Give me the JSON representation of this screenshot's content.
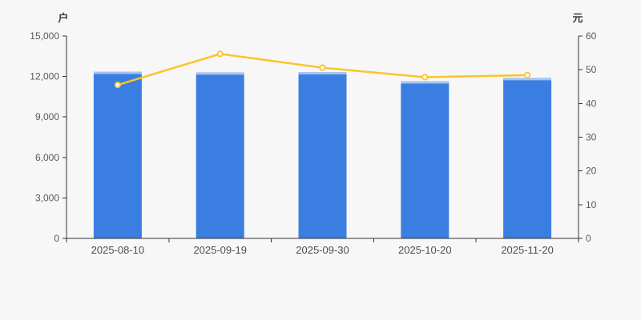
{
  "chart_data": {
    "type": "bar",
    "categories": [
      "2025-08-10",
      "2025-09-19",
      "2025-09-30",
      "2025-10-20",
      "2025-11-20"
    ],
    "series": [
      {
        "name": "户",
        "type": "bar",
        "axis": "left",
        "values": [
          12360,
          12310,
          12330,
          11650,
          11900
        ]
      },
      {
        "name": "元",
        "type": "line",
        "axis": "right",
        "values": [
          45.5,
          54.7,
          50.6,
          47.8,
          48.4
        ]
      }
    ],
    "title": "",
    "xlabel": "",
    "left_axis": {
      "name": "户",
      "min": 0,
      "max": 15000,
      "ticks": [
        "15,000",
        "12,000",
        "9,000",
        "6,000",
        "3,000",
        "0"
      ]
    },
    "right_axis": {
      "name": "元",
      "min": 0,
      "max": 60,
      "ticks": [
        "60",
        "50",
        "40",
        "30",
        "20",
        "10",
        "0"
      ]
    },
    "legend": "none",
    "grid": "off"
  },
  "colors": {
    "background": "#f7f7f7",
    "bar": "#3b7ee2",
    "bar_top_cap": "#a5c3ef",
    "line": "#fac42a",
    "marker_fill": "#ffffff",
    "axis_line": "#333333",
    "tick_label": "#585858",
    "axis_name": "#3d3d3d"
  }
}
